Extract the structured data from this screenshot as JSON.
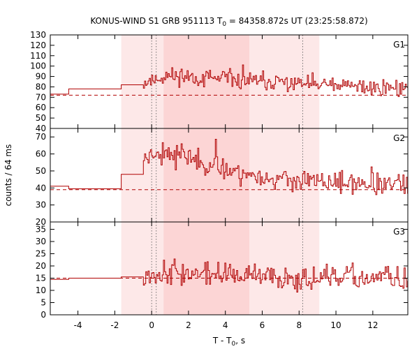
{
  "chart_data": {
    "type": "line",
    "title_prefix": "KONUS-WIND S1 GRB 951113 T",
    "title_sub": "0",
    "title_suffix": " = 84358.872s UT (23:25:58.872)",
    "xlabel_prefix": "T - T",
    "xlabel_sub": "0",
    "xlabel_suffix": ", s",
    "ylabel": "counts / 64 ms",
    "xlim": [
      -5.5,
      13.9
    ],
    "xticks": [
      -4,
      -2,
      0,
      2,
      4,
      6,
      8,
      10,
      12
    ],
    "xtick_labels": [
      "-4",
      "-2",
      "0",
      "2",
      "4",
      "6",
      "8",
      "10",
      "12"
    ],
    "shaded_intervals": [
      {
        "x0": -1.65,
        "x1": 9.1,
        "color": "#fde8e8"
      },
      {
        "x0": 0.65,
        "x1": 5.3,
        "color": "#fcd5d5"
      }
    ],
    "vlines": [
      0.0,
      0.25,
      8.2
    ],
    "series_color": "#b00000",
    "panels": [
      {
        "name": "G1",
        "ylim": [
          40,
          130
        ],
        "yticks": [
          40,
          50,
          60,
          70,
          80,
          90,
          100,
          110,
          120,
          130
        ],
        "ytick_labels": [
          "40",
          "50",
          "60",
          "70",
          "80",
          "90",
          "100",
          "110",
          "120",
          "130"
        ],
        "background": 72,
        "pre_steps": [
          {
            "x": -5.5,
            "y": 73
          },
          {
            "x": -4.5,
            "y": 78
          },
          {
            "x": -1.65,
            "y": 82
          }
        ],
        "burst_start": -0.45,
        "mean": [
          [
            -0.45,
            84
          ],
          [
            0.5,
            89
          ],
          [
            1.5,
            91
          ],
          [
            3,
            88
          ],
          [
            5,
            86
          ],
          [
            7,
            84
          ],
          [
            9,
            82
          ],
          [
            11,
            80
          ],
          [
            13.9,
            79
          ]
        ],
        "noise": 7,
        "seed": 11
      },
      {
        "name": "G2",
        "ylim": [
          20,
          75
        ],
        "yticks": [
          20,
          30,
          40,
          50,
          60,
          70
        ],
        "ytick_labels": [
          "20",
          "30",
          "40",
          "50",
          "60",
          "70"
        ],
        "background": 39,
        "pre_steps": [
          {
            "x": -5.5,
            "y": 41
          },
          {
            "x": -4.5,
            "y": 39.5
          },
          {
            "x": -1.65,
            "y": 48
          }
        ],
        "burst_start": -0.45,
        "mean": [
          [
            -0.45,
            58
          ],
          [
            0.3,
            62
          ],
          [
            1.5,
            60
          ],
          [
            3,
            54
          ],
          [
            4.5,
            50
          ],
          [
            6,
            46
          ],
          [
            8,
            44
          ],
          [
            10,
            43
          ],
          [
            12,
            42
          ],
          [
            13.9,
            42
          ]
        ],
        "noise": 5,
        "seed": 23
      },
      {
        "name": "G3",
        "ylim": [
          0,
          38
        ],
        "yticks": [
          0,
          5,
          10,
          15,
          20,
          25,
          30,
          35
        ],
        "ytick_labels": [
          "0",
          "5",
          "10",
          "15",
          "20",
          "25",
          "30",
          "35"
        ],
        "background": 15,
        "pre_steps": [
          {
            "x": -5.5,
            "y": 14.5
          },
          {
            "x": -4.5,
            "y": 15
          },
          {
            "x": -1.65,
            "y": 15.5
          }
        ],
        "burst_start": -0.45,
        "mean": [
          [
            -0.45,
            17
          ],
          [
            1,
            17.5
          ],
          [
            3,
            16.5
          ],
          [
            6,
            15.5
          ],
          [
            9,
            15
          ],
          [
            13.9,
            15
          ]
        ],
        "noise": 4,
        "seed": 37
      }
    ]
  }
}
